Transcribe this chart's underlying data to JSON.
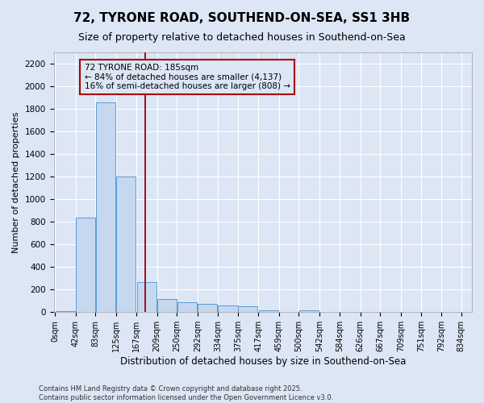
{
  "title": "72, TYRONE ROAD, SOUTHEND-ON-SEA, SS1 3HB",
  "subtitle": "Size of property relative to detached houses in Southend-on-Sea",
  "xlabel": "Distribution of detached houses by size in Southend-on-Sea",
  "ylabel": "Number of detached properties",
  "bar_color": "#c5d8f0",
  "bar_edge_color": "#5b9bd5",
  "bg_color": "#dce6f5",
  "grid_color": "#ffffff",
  "annotation_box_color": "#aa0000",
  "annotation_text": "72 TYRONE ROAD: 185sqm\n← 84% of detached houses are smaller (4,137)\n16% of semi-detached houses are larger (808) →",
  "vline_x": 185,
  "vline_color": "#990000",
  "bins_left_edges": [
    0,
    42,
    83,
    125,
    167,
    209,
    250,
    292,
    334,
    375,
    417,
    459,
    500,
    542,
    584,
    626,
    667,
    709,
    751,
    792
  ],
  "bin_width": 41,
  "bar_heights": [
    10,
    840,
    1860,
    1200,
    270,
    120,
    90,
    75,
    60,
    50,
    20,
    0,
    15,
    0,
    0,
    0,
    0,
    0,
    0,
    0
  ],
  "ylim": [
    0,
    2300
  ],
  "yticks": [
    0,
    200,
    400,
    600,
    800,
    1000,
    1200,
    1400,
    1600,
    1800,
    2000,
    2200
  ],
  "xtick_labels": [
    "0sqm",
    "42sqm",
    "83sqm",
    "125sqm",
    "167sqm",
    "209sqm",
    "250sqm",
    "292sqm",
    "334sqm",
    "375sqm",
    "417sqm",
    "459sqm",
    "500sqm",
    "542sqm",
    "584sqm",
    "626sqm",
    "667sqm",
    "709sqm",
    "751sqm",
    "792sqm",
    "834sqm"
  ],
  "footnote": "Contains HM Land Registry data © Crown copyright and database right 2025.\nContains public sector information licensed under the Open Government Licence v3.0.",
  "title_fontsize": 11,
  "subtitle_fontsize": 9,
  "xlabel_fontsize": 8.5,
  "ylabel_fontsize": 8,
  "tick_fontsize": 7,
  "annotation_fontsize": 7.5,
  "footnote_fontsize": 6
}
